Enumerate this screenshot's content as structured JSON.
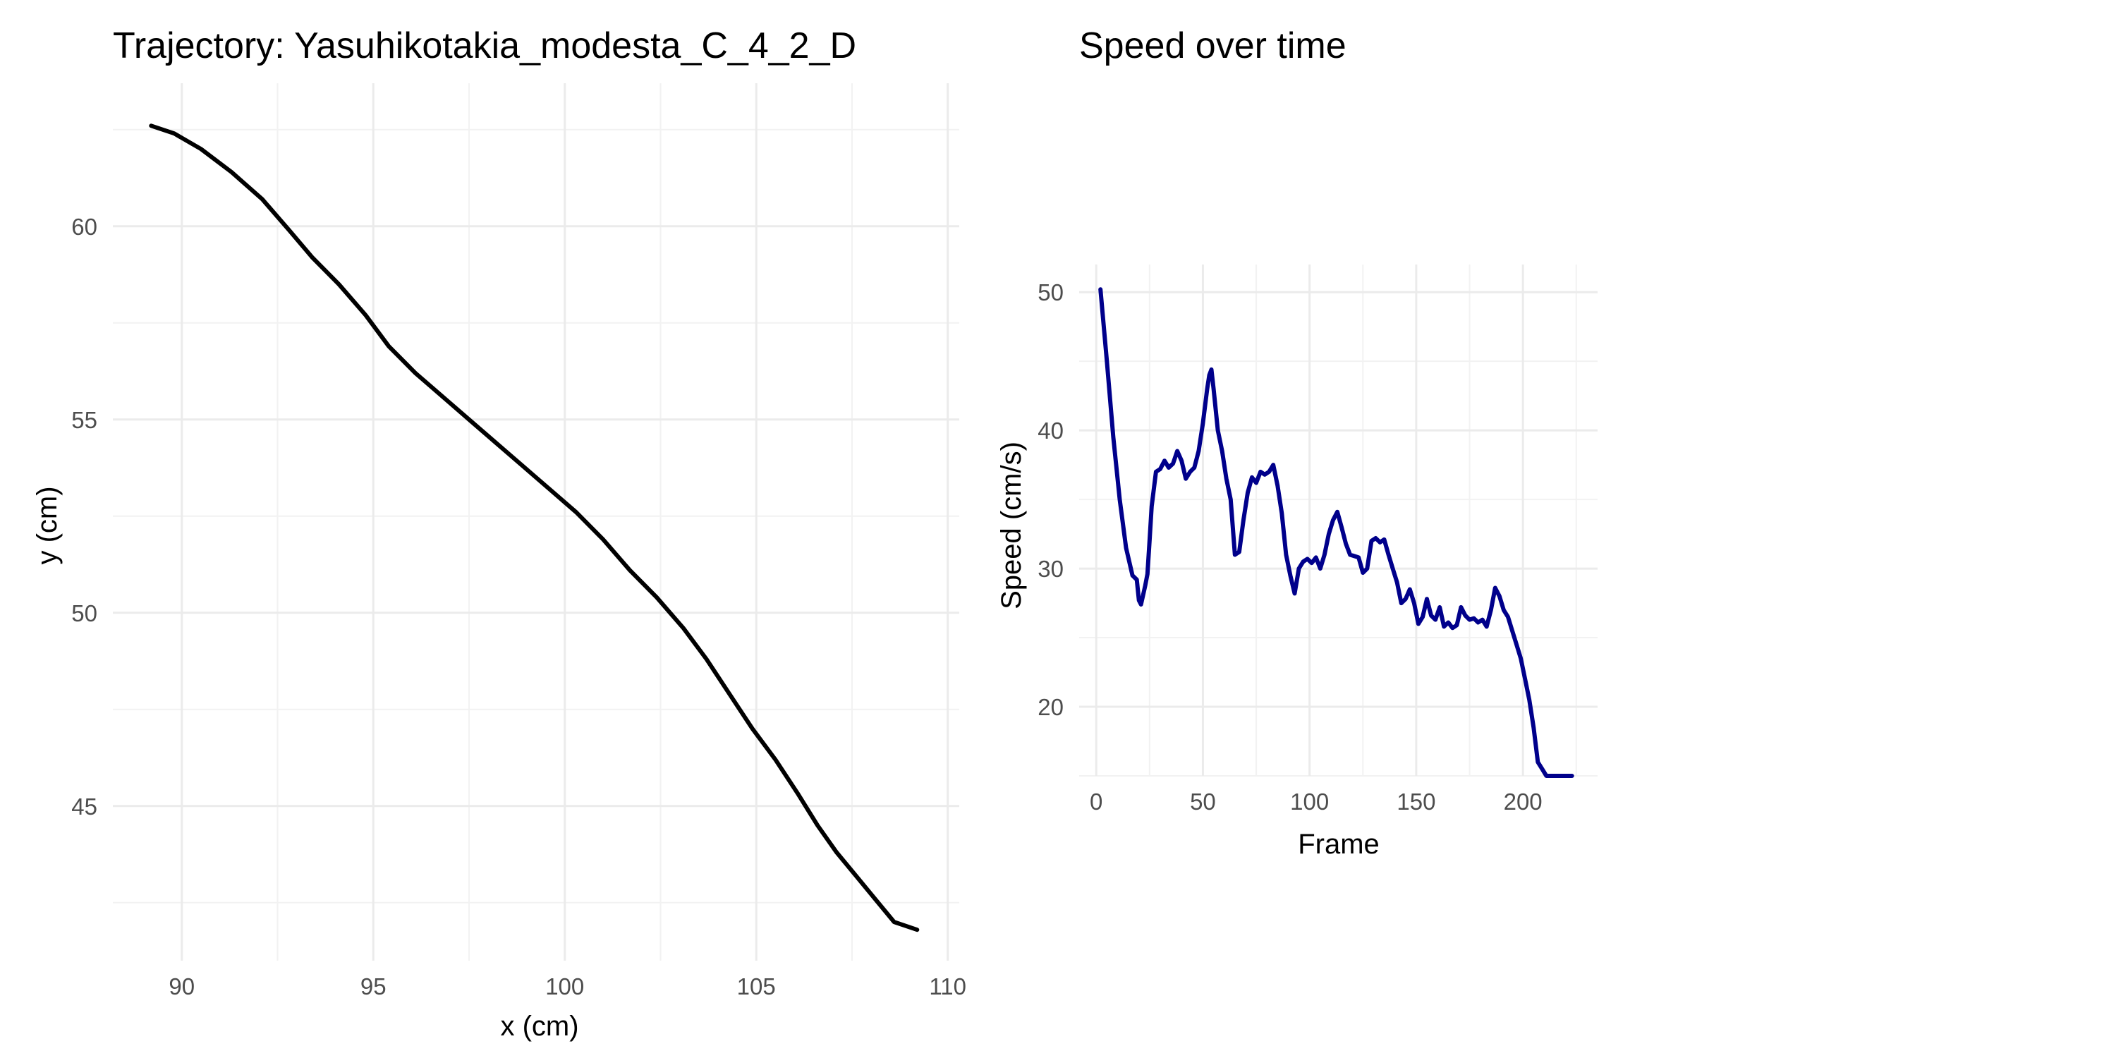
{
  "chart_data": [
    {
      "type": "line",
      "title": "Trajectory: Yasuhikotakia_modesta_C_4_2_D",
      "xlabel": "x (cm)",
      "ylabel": "y (cm)",
      "xlim": [
        88.2,
        110.3
      ],
      "ylim": [
        41.0,
        63.7
      ],
      "xticks": [
        90,
        95,
        100,
        105,
        110
      ],
      "yticks": [
        45,
        50,
        55,
        60
      ],
      "xtick_labels": [
        "90",
        "95",
        "100",
        "105",
        "110"
      ],
      "ytick_labels": [
        "45",
        "50",
        "55",
        "60"
      ],
      "xminor": [
        92.5,
        97.5,
        102.5,
        107.5
      ],
      "yminor": [
        42.5,
        47.5,
        52.5,
        57.5,
        62.5
      ],
      "line_color": "#000000",
      "x": [
        89.2,
        89.8,
        90.5,
        91.3,
        92.1,
        92.8,
        93.4,
        94.1,
        94.8,
        95.4,
        96.1,
        96.8,
        97.5,
        98.2,
        98.9,
        99.6,
        100.3,
        101.0,
        101.7,
        102.4,
        103.1,
        103.7,
        104.3,
        104.9,
        105.5,
        106.1,
        106.6,
        107.1,
        107.6,
        108.1,
        108.6,
        109.2
      ],
      "y": [
        62.6,
        62.4,
        62.0,
        61.4,
        60.7,
        59.9,
        59.2,
        58.5,
        57.7,
        56.9,
        56.2,
        55.6,
        55.0,
        54.4,
        53.8,
        53.2,
        52.6,
        51.9,
        51.1,
        50.4,
        49.6,
        48.8,
        47.9,
        47.0,
        46.2,
        45.3,
        44.5,
        43.8,
        43.2,
        42.6,
        42.0,
        41.8
      ]
    },
    {
      "type": "line",
      "title": "Speed over time",
      "xlabel": "Frame",
      "ylabel": "Speed (cm/s)",
      "xlim": [
        -8,
        235
      ],
      "ylim": [
        15,
        52
      ],
      "xticks": [
        0,
        50,
        100,
        150,
        200
      ],
      "yticks": [
        20,
        30,
        40,
        50
      ],
      "xtick_labels": [
        "0",
        "50",
        "100",
        "150",
        "200"
      ],
      "ytick_labels": [
        "20",
        "30",
        "40",
        "50"
      ],
      "xminor": [
        25,
        75,
        125,
        175,
        225
      ],
      "yminor": [
        15,
        25,
        35,
        45
      ],
      "line_color": "#00008b",
      "x": [
        2,
        5,
        8,
        11,
        14,
        17,
        19,
        20,
        21,
        23,
        24,
        25,
        26,
        28,
        30,
        32,
        34,
        36,
        38,
        40,
        42,
        44,
        46,
        48,
        50,
        52,
        53,
        54,
        55,
        57,
        59,
        61,
        63,
        65,
        67,
        69,
        71,
        73,
        75,
        77,
        79,
        81,
        83,
        85,
        87,
        89,
        91,
        93,
        95,
        97,
        99,
        101,
        103,
        105,
        107,
        109,
        111,
        113,
        115,
        117,
        119,
        121,
        123,
        125,
        127,
        129,
        131,
        133,
        135,
        137,
        139,
        141,
        143,
        145,
        147,
        149,
        151,
        153,
        155,
        157,
        159,
        161,
        163,
        165,
        167,
        169,
        171,
        173,
        175,
        177,
        179,
        181,
        183,
        185,
        187,
        189,
        191,
        193,
        195,
        197,
        199,
        201,
        203,
        205,
        207,
        209,
        211,
        214,
        217,
        220,
        223
      ],
      "y": [
        50.2,
        45.0,
        39.5,
        35.0,
        31.5,
        29.5,
        29.2,
        27.7,
        27.4,
        28.8,
        29.6,
        32.0,
        34.5,
        37.0,
        37.2,
        37.8,
        37.3,
        37.6,
        38.5,
        37.8,
        36.5,
        37.0,
        37.3,
        38.5,
        40.5,
        43.0,
        44.0,
        44.4,
        43.0,
        40.0,
        38.5,
        36.5,
        35.0,
        31.0,
        31.2,
        33.5,
        35.5,
        36.6,
        36.2,
        37.0,
        36.8,
        37.0,
        37.5,
        36.0,
        34.0,
        31.0,
        29.5,
        28.2,
        30.0,
        30.5,
        30.7,
        30.4,
        30.8,
        30.0,
        31.0,
        32.5,
        33.5,
        34.1,
        33.0,
        31.8,
        31.0,
        30.9,
        30.8,
        29.7,
        30.0,
        32.0,
        32.2,
        31.9,
        32.1,
        31.0,
        30.0,
        29.0,
        27.5,
        27.8,
        28.5,
        27.5,
        26.0,
        26.5,
        27.8,
        26.6,
        26.3,
        27.2,
        25.8,
        26.1,
        25.7,
        25.9,
        27.2,
        26.6,
        26.3,
        26.4,
        26.1,
        26.3,
        25.8,
        27.0,
        28.6,
        28.0,
        27.0,
        26.5,
        25.5,
        24.5,
        23.5,
        22.0,
        20.5,
        18.5,
        16.0,
        15.5,
        15.0,
        14.8,
        14.6,
        14.4,
        14.2
      ]
    }
  ]
}
